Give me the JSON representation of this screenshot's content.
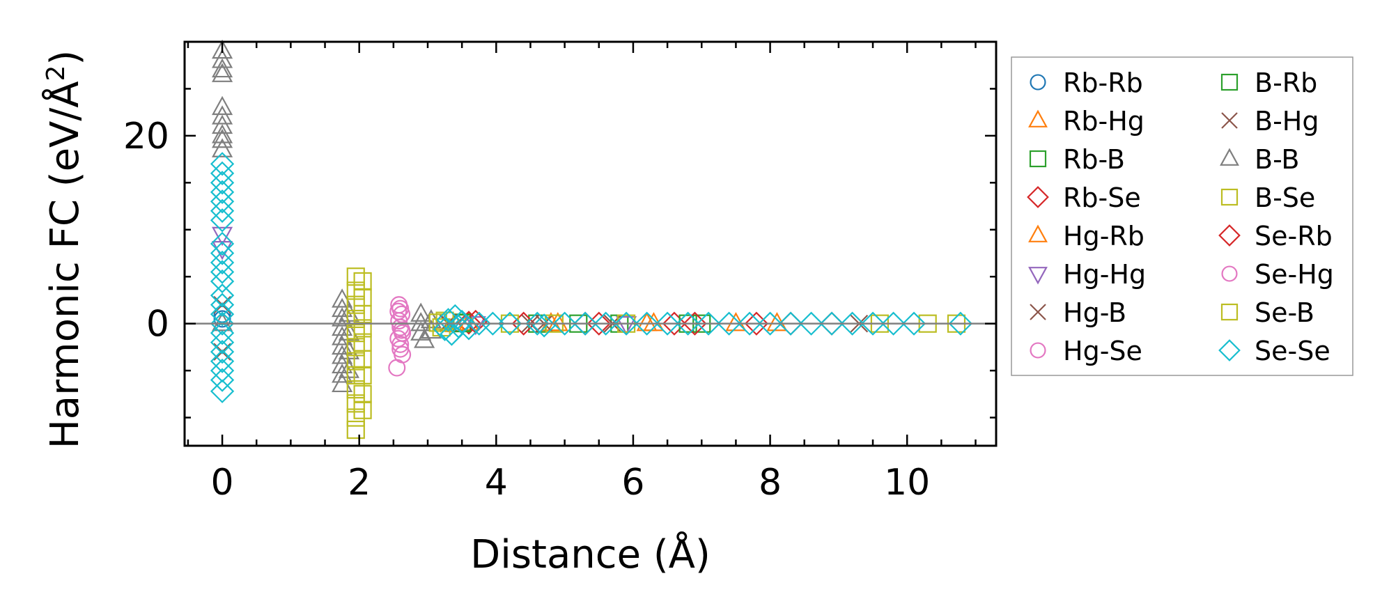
{
  "chart_data": {
    "type": "scatter",
    "title": "",
    "xlabel": "Distance (Å)",
    "ylabel": "Harmonic FC (eV/Å²)",
    "ylabel_parts": {
      "main": "Harmonic FC (eV/Å",
      "sup": "2",
      "close": ")"
    },
    "xlim": [
      -0.55,
      11.3
    ],
    "ylim": [
      -13,
      30
    ],
    "xticks": [
      0,
      2,
      4,
      6,
      8,
      10
    ],
    "yticks": [
      0,
      20
    ],
    "xtick_labels": [
      "0",
      "2",
      "4",
      "6",
      "8",
      "10"
    ],
    "ytick_labels": [
      "0",
      "20"
    ],
    "x_minor_step": 0.5,
    "y_minor_step": 5,
    "grid": false,
    "zero_line": true,
    "legend_position": "outside-right",
    "legend_columns": 2,
    "series": [
      {
        "name": "Rb-Rb",
        "marker": "circle",
        "color": "#1f77b4",
        "points": [
          [
            0,
            0.5
          ],
          [
            0,
            1.0
          ]
        ]
      },
      {
        "name": "Rb-Hg",
        "marker": "triangle-up",
        "color": "#ff7f0e",
        "points": [
          [
            3.4,
            -0.1
          ],
          [
            3.6,
            0.05
          ],
          [
            4.8,
            0.0
          ],
          [
            6.2,
            0.0
          ],
          [
            7.5,
            0.0
          ]
        ]
      },
      {
        "name": "Rb-B",
        "marker": "square",
        "color": "#2ca02c",
        "points": [
          [
            3.5,
            0.1
          ],
          [
            4.6,
            0.0
          ],
          [
            5.8,
            0.0
          ],
          [
            7.0,
            0.0
          ]
        ]
      },
      {
        "name": "Rb-Se",
        "marker": "diamond",
        "color": "#d62728",
        "points": [
          [
            3.6,
            0.1
          ],
          [
            4.4,
            0.0
          ],
          [
            5.5,
            0.0
          ],
          [
            6.6,
            0.0
          ],
          [
            7.8,
            0.0
          ],
          [
            8.9,
            0.0
          ]
        ]
      },
      {
        "name": "Hg-Rb",
        "marker": "triangle-up",
        "color": "#ff7f0e",
        "points": [
          [
            3.4,
            -0.1
          ],
          [
            4.9,
            0.0
          ],
          [
            6.3,
            0.0
          ],
          [
            8.1,
            0.0
          ]
        ]
      },
      {
        "name": "Hg-Hg",
        "marker": "triangle-down",
        "color": "#9467bd",
        "points": [
          [
            0,
            9.5
          ],
          [
            0,
            8.0
          ],
          [
            3.7,
            0.0
          ],
          [
            5.9,
            0.0
          ]
        ]
      },
      {
        "name": "Hg-B",
        "marker": "x",
        "color": "#8c564b",
        "points": [
          [
            0,
            -3.0
          ],
          [
            0,
            2.0
          ],
          [
            3.3,
            0.0
          ],
          [
            4.5,
            0.0
          ],
          [
            5.7,
            0.0
          ]
        ]
      },
      {
        "name": "Hg-Se",
        "marker": "circle",
        "color": "#e377c2",
        "points": [
          [
            2.58,
            2.0
          ],
          [
            2.6,
            1.6
          ],
          [
            2.62,
            1.0
          ],
          [
            2.58,
            0.3
          ],
          [
            2.6,
            -0.4
          ],
          [
            2.63,
            -1.0
          ],
          [
            2.57,
            -1.6
          ],
          [
            2.6,
            -2.2
          ],
          [
            2.63,
            -3.3
          ],
          [
            2.55,
            -4.7
          ]
        ]
      },
      {
        "name": "B-Rb",
        "marker": "square",
        "color": "#2ca02c",
        "points": [
          [
            3.5,
            0.05
          ],
          [
            5.2,
            0.0
          ],
          [
            6.8,
            0.0
          ]
        ]
      },
      {
        "name": "B-Hg",
        "marker": "x",
        "color": "#8c564b",
        "points": [
          [
            3.3,
            0.1
          ],
          [
            4.7,
            0.0
          ],
          [
            5.7,
            0.0
          ],
          [
            9.3,
            0.0
          ]
        ]
      },
      {
        "name": "B-B",
        "marker": "triangle-up",
        "color": "#7f7f7f",
        "points": [
          [
            0,
            29.0
          ],
          [
            0,
            28.0
          ],
          [
            0,
            27.0
          ],
          [
            0,
            26.5
          ],
          [
            0,
            23.0
          ],
          [
            0,
            22.0
          ],
          [
            0,
            21.0
          ],
          [
            0,
            20.0
          ],
          [
            0,
            19.5
          ],
          [
            0,
            18.5
          ],
          [
            0,
            0.0
          ],
          [
            1.75,
            2.5
          ],
          [
            1.75,
            1.5
          ],
          [
            1.75,
            0.5
          ],
          [
            1.75,
            -0.5
          ],
          [
            1.75,
            -1.5
          ],
          [
            1.75,
            -2.5
          ],
          [
            1.75,
            -3.5
          ],
          [
            1.75,
            -4.5
          ],
          [
            1.75,
            -5.5
          ],
          [
            1.75,
            -6.5
          ],
          [
            1.85,
            1.0
          ],
          [
            1.85,
            -1.0
          ],
          [
            1.85,
            -3.0
          ],
          [
            1.85,
            -5.0
          ],
          [
            2.9,
            1.0
          ],
          [
            2.9,
            0.0
          ],
          [
            2.9,
            -1.0
          ],
          [
            2.95,
            -1.8
          ],
          [
            3.05,
            0.3
          ],
          [
            3.05,
            -0.8
          ]
        ]
      },
      {
        "name": "B-Se",
        "marker": "square",
        "color": "#bcbd22",
        "points": [
          [
            1.95,
            5.0
          ],
          [
            1.95,
            3.5
          ],
          [
            1.95,
            2.0
          ],
          [
            1.95,
            0.5
          ],
          [
            1.95,
            -1.0
          ],
          [
            1.95,
            -2.5
          ],
          [
            1.95,
            -4.0
          ],
          [
            1.95,
            -5.5
          ],
          [
            1.95,
            -7.0
          ],
          [
            1.95,
            -8.5
          ],
          [
            1.95,
            -10.0
          ],
          [
            1.95,
            -11.3
          ],
          [
            2.05,
            4.5
          ],
          [
            2.05,
            2.8
          ],
          [
            2.05,
            1.0
          ],
          [
            2.05,
            -0.5
          ],
          [
            2.05,
            -2.0
          ],
          [
            2.05,
            -3.8
          ],
          [
            2.05,
            -5.5
          ],
          [
            2.05,
            -7.5
          ],
          [
            2.05,
            -9.2
          ],
          [
            3.15,
            0.1
          ],
          [
            3.2,
            -0.4
          ],
          [
            10.3,
            0.0
          ],
          [
            10.72,
            0.0
          ]
        ]
      },
      {
        "name": "Se-Rb",
        "marker": "diamond",
        "color": "#d62728",
        "points": [
          [
            3.7,
            0.2
          ],
          [
            5.3,
            0.0
          ],
          [
            6.9,
            0.0
          ],
          [
            8.3,
            0.0
          ]
        ]
      },
      {
        "name": "Se-Hg",
        "marker": "circle",
        "color": "#e377c2",
        "points": [
          [
            2.57,
            1.3
          ],
          [
            2.62,
            -0.7
          ],
          [
            2.6,
            -2.7
          ]
        ]
      },
      {
        "name": "Se-B",
        "marker": "square",
        "color": "#bcbd22",
        "points": [
          [
            3.25,
            0.3
          ],
          [
            4.2,
            0.0
          ],
          [
            4.85,
            0.0
          ],
          [
            5.9,
            0.0
          ],
          [
            9.6,
            0.0
          ]
        ]
      },
      {
        "name": "Se-Se",
        "marker": "diamond",
        "color": "#17becf",
        "points": [
          [
            0,
            17.0
          ],
          [
            0,
            16.0
          ],
          [
            0,
            15.0
          ],
          [
            0,
            14.0
          ],
          [
            0,
            13.0
          ],
          [
            0,
            12.0
          ],
          [
            0,
            11.0
          ],
          [
            0,
            8.5
          ],
          [
            0,
            7.5
          ],
          [
            0,
            6.5
          ],
          [
            0,
            5.5
          ],
          [
            0,
            4.5
          ],
          [
            0,
            3.0
          ],
          [
            0,
            2.0
          ],
          [
            0,
            1.0
          ],
          [
            0,
            0.0
          ],
          [
            0,
            -1.0
          ],
          [
            0,
            -2.0
          ],
          [
            0,
            -3.0
          ],
          [
            0,
            -4.0
          ],
          [
            0,
            -5.0
          ],
          [
            0,
            -6.0
          ],
          [
            0,
            -7.2
          ],
          [
            3.25,
            -0.6
          ],
          [
            3.3,
            0.4
          ],
          [
            3.35,
            -1.1
          ],
          [
            3.4,
            0.8
          ],
          [
            3.45,
            -0.3
          ],
          [
            3.5,
            0.2
          ],
          [
            3.6,
            -0.5
          ],
          [
            3.75,
            0.0
          ],
          [
            3.95,
            0.0
          ],
          [
            4.2,
            0.0
          ],
          [
            4.6,
            0.0
          ],
          [
            4.7,
            -0.2
          ],
          [
            5.0,
            0.0
          ],
          [
            5.3,
            0.0
          ],
          [
            5.6,
            0.0
          ],
          [
            5.9,
            0.0
          ],
          [
            6.2,
            0.0
          ],
          [
            6.5,
            0.0
          ],
          [
            6.8,
            0.0
          ],
          [
            7.1,
            0.0
          ],
          [
            7.4,
            0.0
          ],
          [
            7.7,
            0.0
          ],
          [
            8.0,
            0.0
          ],
          [
            8.3,
            0.0
          ],
          [
            8.6,
            0.0
          ],
          [
            8.9,
            0.0
          ],
          [
            9.2,
            0.0
          ],
          [
            9.5,
            0.0
          ],
          [
            9.8,
            0.0
          ],
          [
            10.1,
            0.0
          ],
          [
            10.78,
            0.0
          ]
        ]
      }
    ]
  }
}
